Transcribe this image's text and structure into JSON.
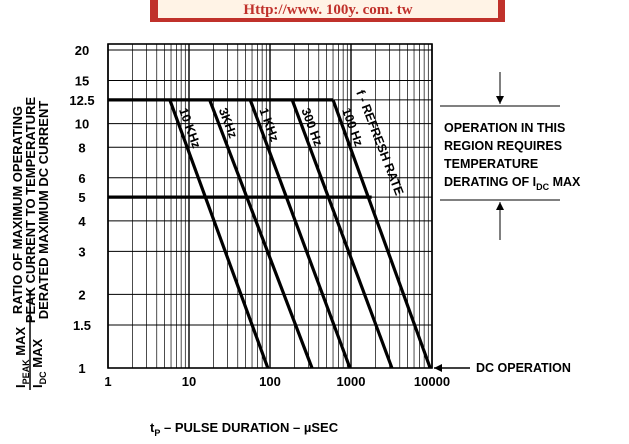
{
  "chart_data": {
    "type": "line",
    "header": "Http://www. 100y. com. tw",
    "ylabel": [
      "RATIO OF MAXIMUM OPERATING",
      "PEAK CURRENT TO TEMPERATURE",
      "DERATED MAXIMUM DC CURRENT"
    ],
    "ratio": {
      "numerator": {
        "text": "I",
        "sub": "PEAK",
        "after": " MAX"
      },
      "denominator": {
        "text": "I",
        "sub": "DC",
        "after": " MAX"
      }
    },
    "xlabel": {
      "text": "t",
      "sub": "P",
      "after": "  – PULSE DURATION – µSEC"
    },
    "annotation": {
      "lines": [
        "OPERATION IN THIS",
        "REGION REQUIRES",
        "TEMPERATURE"
      ],
      "last": {
        "text": "DERATING OF I",
        "sub": "DC",
        "after": " MAX"
      }
    },
    "dc_label": "DC OPERATION",
    "refresh_label": "f - REFRESH RATE",
    "log_x": true,
    "log_y": true,
    "grid": true,
    "color": "#000000",
    "xlim": [
      1,
      10000
    ],
    "xticks": [
      1,
      10,
      100,
      1000,
      10000
    ],
    "ylim": [
      1,
      20
    ],
    "yticks": [
      1,
      1.5,
      2,
      3,
      4,
      5,
      6,
      8,
      10,
      12.5,
      15,
      20
    ],
    "series": [
      {
        "name": "10 KHz",
        "x": [
          5.8,
          94
        ],
        "values": [
          12.5,
          1
        ]
      },
      {
        "name": "3KHz",
        "x": [
          18,
          330
        ],
        "values": [
          12.5,
          1
        ]
      },
      {
        "name": "1 KHz",
        "x": [
          57,
          970
        ],
        "values": [
          12.5,
          1
        ]
      },
      {
        "name": "300 Hz",
        "x": [
          188,
          3200
        ],
        "values": [
          12.5,
          1
        ]
      },
      {
        "name": "100 Hz",
        "x": [
          600,
          9500
        ],
        "values": [
          12.5,
          1
        ]
      },
      {
        "x": [
          1,
          600
        ],
        "values": [
          12.5,
          12.5
        ]
      },
      {
        "x": [
          1,
          1800
        ],
        "values": [
          5,
          5
        ]
      }
    ]
  }
}
